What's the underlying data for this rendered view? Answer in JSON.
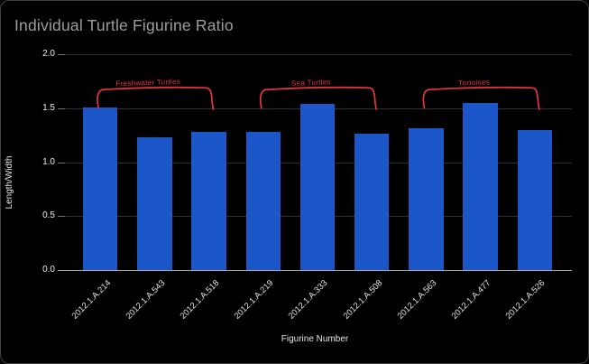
{
  "title": "Individual Turtle Figurine Ratio",
  "chart_data": {
    "type": "bar",
    "title": "Individual Turtle Figurine Ratio",
    "xlabel": "Figurine Number",
    "ylabel": "Length/Width",
    "categories": [
      "2012.1.A.214",
      "2012.1.A.543",
      "2012.1.A.518",
      "2012.1.A.219",
      "2012.1.A.333",
      "2012.1.A.508",
      "2012.1.A.563",
      "2012.1.A.477",
      "2012.1.A.526"
    ],
    "values": [
      1.51,
      1.23,
      1.28,
      1.28,
      1.54,
      1.26,
      1.31,
      1.55,
      1.3
    ],
    "ylim": [
      0,
      2
    ],
    "y_ticks": [
      0,
      0.5,
      1,
      1.5,
      2
    ],
    "y_tick_labels": [
      "0.0",
      "0.5",
      "1.0",
      "1.5",
      "2.0"
    ],
    "grid": true,
    "legend": "none",
    "bar_color": "#1b57c8",
    "annotation_color": "#e8353f",
    "annotations": [
      {
        "label": "Freshwater Turtles",
        "from_bar": 0,
        "to_bar": 2
      },
      {
        "label": "Sea Turtles",
        "from_bar": 3,
        "to_bar": 5
      },
      {
        "label": "Tortoises",
        "from_bar": 6,
        "to_bar": 8
      }
    ]
  },
  "colors": {
    "background": "#000000",
    "border": "#414141",
    "title_text": "#9d9d9d",
    "axis_text": "#e8e8e8",
    "gridline": "#2e2e2e",
    "baseline": "#a6a6a6"
  }
}
